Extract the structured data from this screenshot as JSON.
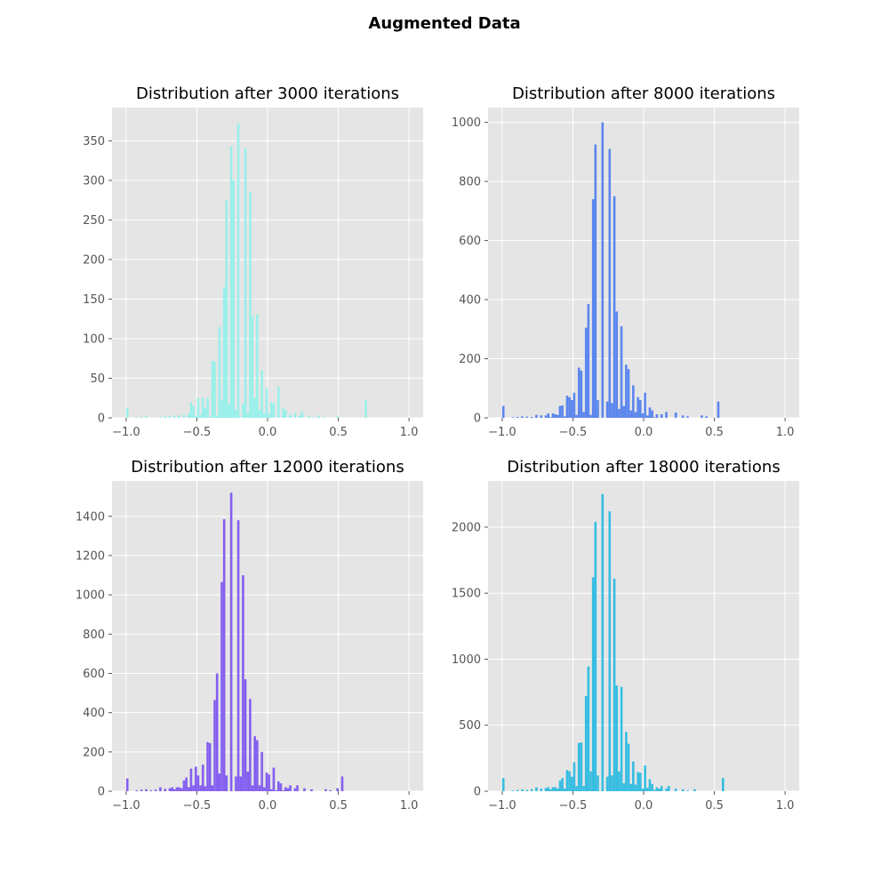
{
  "figure": {
    "suptitle": "Augmented Data"
  },
  "style": {
    "background": "#e5e5e5",
    "grid": "#ffffff",
    "tick_color": "#555555"
  },
  "chart_data": [
    {
      "type": "bar",
      "title": "Distribution after 3000 iterations",
      "xlabel": "",
      "ylabel": "",
      "xlim": [
        -1.1,
        1.1
      ],
      "ylim": [
        0,
        392
      ],
      "xticks": [
        -1.0,
        -0.5,
        0.0,
        0.5,
        1.0
      ],
      "xtick_labels": [
        "−1.0",
        "−0.5",
        "0.0",
        "0.5",
        "1.0"
      ],
      "yticks": [
        0,
        50,
        100,
        150,
        200,
        250,
        300,
        350
      ],
      "ytick_labels": [
        "0",
        "50",
        "100",
        "150",
        "200",
        "250",
        "300",
        "350"
      ],
      "grid": true,
      "color": "#99f0ea",
      "bin_start": -1.0,
      "bin_width": 0.0167,
      "values": [
        12,
        0,
        0,
        0,
        1,
        0,
        1,
        0,
        2,
        0,
        0,
        0,
        0,
        0,
        1,
        0,
        2,
        0,
        2,
        0,
        3,
        0,
        3,
        0,
        4,
        0,
        5,
        20,
        15,
        2,
        25,
        4,
        25,
        12,
        25,
        1,
        72,
        71,
        3,
        115,
        23,
        165,
        275,
        18,
        343,
        300,
        10,
        372,
        0,
        18,
        340,
        6,
        285,
        128,
        25,
        131,
        10,
        60,
        5,
        37,
        5,
        20,
        18,
        0,
        39,
        0,
        12,
        10,
        0,
        4,
        0,
        6,
        0,
        3,
        8,
        0,
        0,
        2,
        0,
        1,
        0,
        3,
        0,
        1,
        0,
        0,
        0,
        0,
        0,
        2,
        0,
        0,
        0,
        0,
        0,
        0,
        0,
        0,
        0,
        0,
        0,
        22
      ]
    },
    {
      "type": "bar",
      "title": "Distribution after 8000 iterations",
      "xlabel": "",
      "ylabel": "",
      "xlim": [
        -1.1,
        1.1
      ],
      "ylim": [
        0,
        1050
      ],
      "xticks": [
        -1.0,
        -0.5,
        0.0,
        0.5,
        1.0
      ],
      "xtick_labels": [
        "−1.0",
        "−0.5",
        "0.0",
        "0.5",
        "1.0"
      ],
      "yticks": [
        0,
        200,
        400,
        600,
        800,
        1000
      ],
      "ytick_labels": [
        "0",
        "200",
        "400",
        "600",
        "800",
        "1000"
      ],
      "grid": true,
      "color": "#5b86ee",
      "bin_start": -1.0,
      "bin_width": 0.0167,
      "values": [
        40,
        0,
        0,
        0,
        2,
        0,
        3,
        0,
        5,
        0,
        4,
        0,
        3,
        0,
        10,
        0,
        8,
        0,
        8,
        15,
        2,
        15,
        12,
        10,
        40,
        42,
        5,
        75,
        70,
        60,
        85,
        10,
        170,
        160,
        20,
        305,
        385,
        10,
        740,
        925,
        60,
        0,
        1000,
        0,
        55,
        910,
        50,
        750,
        360,
        30,
        310,
        40,
        180,
        165,
        25,
        110,
        20,
        70,
        60,
        15,
        85,
        8,
        35,
        25,
        2,
        12,
        0,
        12,
        0,
        20,
        0,
        0,
        0,
        18,
        0,
        0,
        8,
        0,
        5,
        0,
        0,
        0,
        0,
        0,
        8,
        0,
        5,
        0,
        0,
        0,
        0,
        55
      ]
    },
    {
      "type": "bar",
      "title": "Distribution after 12000 iterations",
      "xlabel": "",
      "ylabel": "",
      "xlim": [
        -1.1,
        1.1
      ],
      "ylim": [
        0,
        1580
      ],
      "xticks": [
        -1.0,
        -0.5,
        0.0,
        0.5,
        1.0
      ],
      "xtick_labels": [
        "−1.0",
        "−0.5",
        "0.0",
        "0.5",
        "1.0"
      ],
      "yticks": [
        0,
        200,
        400,
        600,
        800,
        1000,
        1200,
        1400
      ],
      "ytick_labels": [
        "0",
        "200",
        "400",
        "600",
        "800",
        "1000",
        "1200",
        "1400"
      ],
      "grid": true,
      "color": "#845ef0",
      "bin_start": -1.0,
      "bin_width": 0.0167,
      "values": [
        65,
        0,
        0,
        0,
        5,
        0,
        8,
        0,
        10,
        0,
        5,
        0,
        8,
        0,
        20,
        0,
        12,
        0,
        15,
        20,
        10,
        20,
        20,
        15,
        55,
        70,
        20,
        115,
        30,
        125,
        80,
        30,
        135,
        25,
        250,
        245,
        30,
        465,
        600,
        90,
        1065,
        1385,
        80,
        0,
        1520,
        0,
        75,
        1380,
        75,
        1100,
        570,
        100,
        470,
        30,
        280,
        260,
        30,
        200,
        20,
        95,
        85,
        10,
        120,
        5,
        50,
        40,
        5,
        20,
        15,
        30,
        0,
        15,
        30,
        0,
        0,
        15,
        0,
        0,
        10,
        0,
        0,
        0,
        0,
        0,
        10,
        0,
        5,
        0,
        0,
        15,
        0,
        75
      ]
    },
    {
      "type": "bar",
      "title": "Distribution after 18000 iterations",
      "xlabel": "",
      "ylabel": "",
      "xlim": [
        -1.1,
        1.1
      ],
      "ylim": [
        0,
        2350
      ],
      "xticks": [
        -1.0,
        -0.5,
        0.0,
        0.5,
        1.0
      ],
      "xtick_labels": [
        "−1.0",
        "−0.5",
        "0.0",
        "0.5",
        "1.0"
      ],
      "yticks": [
        0,
        500,
        1000,
        1500,
        2000
      ],
      "ytick_labels": [
        "0",
        "500",
        "1000",
        "1500",
        "2000"
      ],
      "grid": true,
      "color": "#36bde1",
      "bin_start": -1.0,
      "bin_width": 0.0167,
      "values": [
        100,
        0,
        0,
        0,
        5,
        0,
        10,
        0,
        15,
        0,
        10,
        0,
        15,
        0,
        30,
        0,
        20,
        0,
        25,
        30,
        15,
        30,
        30,
        20,
        80,
        100,
        20,
        160,
        150,
        110,
        220,
        40,
        365,
        370,
        40,
        720,
        945,
        150,
        1620,
        2040,
        120,
        0,
        2250,
        0,
        110,
        2120,
        120,
        1610,
        800,
        150,
        790,
        60,
        450,
        360,
        55,
        225,
        50,
        145,
        140,
        20,
        195,
        25,
        90,
        55,
        10,
        30,
        20,
        40,
        0,
        20,
        40,
        0,
        0,
        20,
        0,
        0,
        15,
        0,
        5,
        0,
        0,
        15,
        0,
        0,
        0,
        0,
        0,
        0,
        0,
        0,
        0,
        0,
        0,
        100
      ]
    }
  ]
}
